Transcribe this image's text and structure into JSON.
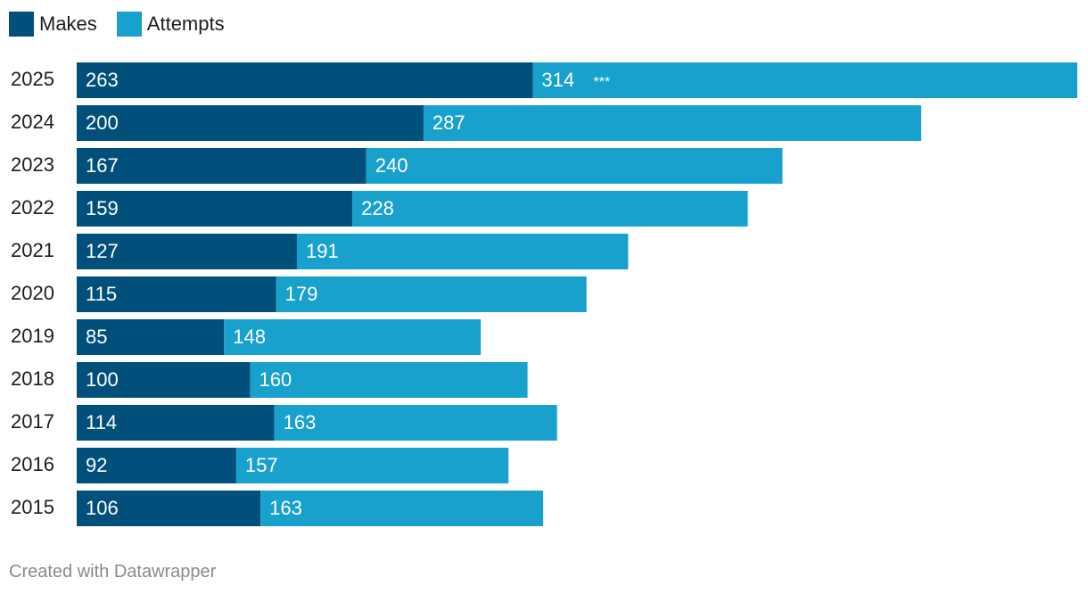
{
  "legend": [
    {
      "label": "Makes",
      "color": "#00507b"
    },
    {
      "label": "Attempts",
      "color": "#18a1cd"
    }
  ],
  "footer": {
    "credit": "Created with Datawrapper"
  },
  "chart_data": {
    "type": "bar",
    "orientation": "horizontal",
    "categories": [
      "2025",
      "2024",
      "2023",
      "2022",
      "2021",
      "2020",
      "2019",
      "2018",
      "2017",
      "2016",
      "2015"
    ],
    "series": [
      {
        "name": "Makes",
        "color": "#00507b",
        "values": [
          263,
          200,
          167,
          159,
          127,
          115,
          85,
          100,
          114,
          92,
          106
        ]
      },
      {
        "name": "Attempts",
        "color": "#18a1cd",
        "values": [
          314,
          287,
          240,
          228,
          191,
          179,
          148,
          160,
          163,
          157,
          163
        ]
      }
    ],
    "stack_total_values": [
      577,
      487,
      407,
      387,
      318,
      294,
      233,
      260,
      277,
      249,
      269
    ],
    "annotations": [
      {
        "category": "2025",
        "text": "***"
      }
    ],
    "xlim": [
      0,
      577
    ],
    "grid": false,
    "legend_position": "top-left",
    "title": "",
    "xlabel": "",
    "ylabel": ""
  }
}
